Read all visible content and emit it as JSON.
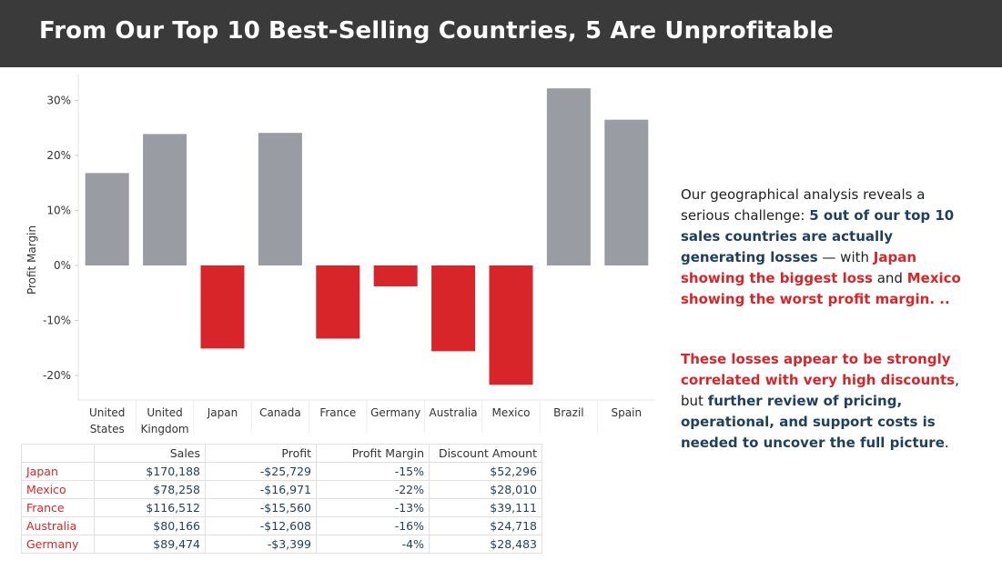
{
  "header": {
    "title": "From Our Top 10 Best-Selling Countries, 5 Are Unprofitable"
  },
  "chart_data": {
    "type": "bar",
    "ylabel": "Profit Margin",
    "ylim": [
      -25,
      35
    ],
    "yticks": [
      30,
      20,
      10,
      0,
      -10,
      -20
    ],
    "ytick_labels": [
      "30%",
      "20%",
      "10%",
      "0%",
      "-10%",
      "-20%"
    ],
    "categories": [
      "United States",
      "United Kingdom",
      "Japan",
      "Canada",
      "France",
      "Germany",
      "Australia",
      "Mexico",
      "Brazil",
      "Spain"
    ],
    "category_lines": [
      [
        "United",
        "States"
      ],
      [
        "United",
        "Kingdom"
      ],
      [
        "Japan"
      ],
      [
        "Canada"
      ],
      [
        "France"
      ],
      [
        "Germany"
      ],
      [
        "Australia"
      ],
      [
        "Mexico"
      ],
      [
        "Brazil"
      ],
      [
        "Spain"
      ]
    ],
    "values": [
      16.8,
      23.9,
      -15.1,
      24.1,
      -13.3,
      -3.8,
      -15.6,
      -21.7,
      32.2,
      26.5
    ],
    "grid": false,
    "colors": {
      "positive": "#999ca3",
      "negative": "#d8252a"
    }
  },
  "narrative": {
    "p1": {
      "part1": "Our geographical analysis reveals a serious challenge: ",
      "part2": "5 out of our top 10 sales countries are actually generating losses",
      "part3": " — with ",
      "part4": "Japan showing the biggest loss",
      "part5": " and ",
      "part6": "Mexico showing the worst profit margin. .."
    },
    "p2": {
      "part1": "These losses appear to be strongly correlated with very high discounts",
      "part2": ", but ",
      "part3": "further review of pricing, operational, and support costs is needed to uncover the full picture",
      "part4": "."
    }
  },
  "table": {
    "headers": [
      "Sales",
      "Profit",
      "Profit Margin",
      "Discount Amount"
    ],
    "rows": [
      {
        "country": "Japan",
        "sales": "$170,188",
        "profit": "-$25,729",
        "margin": "-15%",
        "discount": "$52,296"
      },
      {
        "country": "Mexico",
        "sales": "$78,258",
        "profit": "-$16,971",
        "margin": "-22%",
        "discount": "$28,010"
      },
      {
        "country": "France",
        "sales": "$116,512",
        "profit": "-$15,560",
        "margin": "-13%",
        "discount": "$39,111"
      },
      {
        "country": "Australia",
        "sales": "$80,166",
        "profit": "-$12,608",
        "margin": "-16%",
        "discount": "$24,718"
      },
      {
        "country": "Germany",
        "sales": "$89,474",
        "profit": "-$3,399",
        "margin": "-4%",
        "discount": "$28,483"
      }
    ]
  }
}
